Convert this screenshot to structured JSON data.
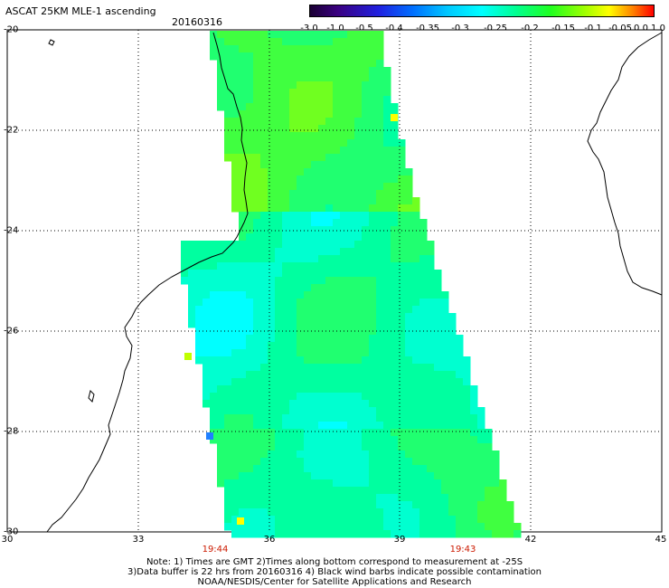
{
  "header": {
    "title": "ASCAT 25KM MLE-1 ascending",
    "date": "20160316"
  },
  "colorbar": {
    "labels": [
      "-3.0",
      "-1.0",
      "-0.5",
      "-0.4",
      "-0.35",
      "-0.3",
      "-0.25",
      "-0.2",
      "-0.15",
      "-0.1",
      "-0.05",
      "0.0",
      "1.0"
    ],
    "colors": [
      "#1a0033",
      "#3a0080",
      "#2020e0",
      "#0070ff",
      "#00b8ff",
      "#00ffff",
      "#00ffb0",
      "#00ff40",
      "#40ff00",
      "#b0ff00",
      "#ffff00",
      "#ff8000",
      "#ff0000"
    ]
  },
  "axes": {
    "lat_labels": [
      "-20",
      "-22",
      "-24",
      "-26",
      "-28",
      "-30"
    ],
    "lon_labels": [
      "30",
      "33",
      "36",
      "39",
      "42",
      "45"
    ]
  },
  "swath_times": [
    "19:44",
    "19:43"
  ],
  "notes": {
    "line1": "Note: 1) Times are GMT 2)Times along bottom correspond to measurement at -25S",
    "line2": "3)Data buffer is 22 hrs from 20160316 4) Black wind barbs indicate possible contamination",
    "line3": "NOAA/NESDIS/Center for Satellite Applications and Research"
  },
  "style": {
    "grid_color": "#000000",
    "coast_color": "#000000",
    "time_color": "#cc1a00"
  }
}
